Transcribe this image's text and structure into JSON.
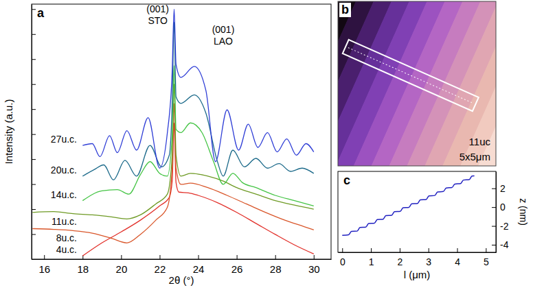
{
  "chart_data": [
    {
      "type": "line",
      "panel": "a",
      "x_label": "2θ (°)",
      "y_label": "Intensity (a.u.)",
      "xlim": [
        15.35,
        30.9
      ],
      "xticks": [
        16,
        18,
        20,
        22,
        24,
        26,
        28,
        30
      ],
      "ylim": [
        0,
        10.2
      ],
      "yticks": [
        0,
        1,
        2,
        3,
        4,
        5,
        6,
        7,
        8,
        9,
        10
      ],
      "tick_labels": "x",
      "annotations": [
        {
          "lines": [
            "(001)",
            "STO"
          ],
          "x": 21.9,
          "y": 9.87
        },
        {
          "lines": [
            "(001)",
            "LAO"
          ],
          "x": 25.3,
          "y": 9.06
        }
      ],
      "series": [
        {
          "name": "4u.c.",
          "color": "#e2302a",
          "x": [
            18.0,
            19.0,
            20.0,
            21.0,
            22.0,
            22.5,
            22.65,
            22.75,
            22.85,
            23.0,
            23.5,
            24.0,
            25.0,
            26.0,
            27.0,
            28.0,
            29.0,
            30.0
          ],
          "values": [
            0.13,
            0.65,
            1.09,
            1.56,
            2.13,
            2.47,
            3.12,
            5.45,
            3.06,
            2.68,
            2.65,
            2.55,
            2.26,
            1.87,
            1.43,
            0.99,
            0.57,
            0.21
          ]
        },
        {
          "name": "8u.c.",
          "color": "#d9562a",
          "x": [
            15.4,
            16.5,
            17.5,
            18.5,
            19.5,
            20.3,
            21.0,
            21.8,
            22.4,
            22.65,
            22.75,
            22.85,
            23.1,
            23.6,
            24.5,
            25.5,
            26.5,
            27.5,
            28.5,
            29.5,
            30.0
          ],
          "values": [
            1.22,
            1.19,
            1.14,
            1.04,
            0.83,
            0.65,
            0.99,
            1.56,
            2.08,
            3.64,
            6.23,
            3.64,
            2.99,
            3.04,
            2.86,
            2.55,
            2.21,
            1.87,
            1.56,
            1.3,
            1.17
          ]
        },
        {
          "name": "11u.c.",
          "color": "#6e9a24",
          "x": [
            15.4,
            16.5,
            17.5,
            18.5,
            19.5,
            20.3,
            21.0,
            21.8,
            22.4,
            22.65,
            22.75,
            22.85,
            23.1,
            23.6,
            24.5,
            25.3,
            26.0,
            27.0,
            28.0,
            29.0,
            30.0
          ],
          "values": [
            1.87,
            1.9,
            1.82,
            1.77,
            1.69,
            1.61,
            1.77,
            2.21,
            2.6,
            4.16,
            7.01,
            4.16,
            3.32,
            3.43,
            3.32,
            3.12,
            2.86,
            2.6,
            2.34,
            2.16,
            2.0
          ]
        },
        {
          "name": "14u.c.",
          "color": "#44c444",
          "x": [
            18.0,
            19.0,
            19.8,
            20.4,
            21.0,
            21.5,
            22.0,
            22.4,
            22.65,
            22.75,
            22.85,
            23.1,
            23.6,
            24.2,
            24.8,
            25.3,
            25.8,
            26.3,
            27.0,
            28.0,
            29.0,
            30.0
          ],
          "values": [
            2.34,
            2.73,
            2.78,
            2.6,
            3.38,
            3.9,
            3.43,
            3.32,
            4.94,
            7.74,
            5.19,
            5.06,
            5.45,
            5.06,
            3.9,
            2.99,
            3.43,
            3.06,
            2.86,
            2.55,
            2.34,
            2.13
          ]
        },
        {
          "name": "20u.c.",
          "color": "#1c6a8a",
          "x": [
            18.0,
            18.6,
            19.1,
            19.6,
            20.2,
            20.8,
            21.5,
            22.1,
            22.5,
            22.65,
            22.75,
            22.85,
            23.1,
            23.8,
            24.4,
            25.0,
            25.3,
            25.8,
            26.4,
            27.0,
            27.6,
            28.2,
            28.8,
            29.4,
            30.0
          ],
          "values": [
            3.32,
            3.58,
            3.77,
            3.17,
            3.95,
            3.32,
            4.55,
            3.69,
            4.16,
            6.23,
            9.48,
            6.49,
            6.23,
            6.57,
            5.84,
            3.9,
            3.32,
            4.36,
            3.69,
            4.03,
            3.64,
            3.82,
            3.51,
            3.64,
            3.43
          ]
        },
        {
          "name": "27u.c.",
          "color": "#2f3ed6",
          "x": [
            18.0,
            18.5,
            18.9,
            19.4,
            19.8,
            20.3,
            20.8,
            21.4,
            22.0,
            22.4,
            22.65,
            22.75,
            22.85,
            23.1,
            23.8,
            24.4,
            24.9,
            25.5,
            26.1,
            26.6,
            27.1,
            27.6,
            28.1,
            28.6,
            29.1,
            29.6,
            30.0
          ],
          "values": [
            4.55,
            4.62,
            4.1,
            4.94,
            4.26,
            5.14,
            4.36,
            5.66,
            3.64,
            5.06,
            7.53,
            10.0,
            7.79,
            7.27,
            7.71,
            6.75,
            3.9,
            5.97,
            4.36,
            5.4,
            4.47,
            5.06,
            4.29,
            4.81,
            4.16,
            4.62,
            4.29
          ]
        }
      ]
    },
    {
      "type": "image",
      "panel": "b",
      "colors": [
        "#120812",
        "#2e1240",
        "#4a1f6e",
        "#66309a",
        "#8040b4",
        "#9c52c0",
        "#b466c4",
        "#c67cbf",
        "#d492b8",
        "#e0a6b2",
        "#e9b8b0",
        "#f1cabf",
        "#f7dcd2"
      ],
      "annotations": [
        "11uc",
        "5x5μm"
      ]
    },
    {
      "type": "line",
      "panel": "c",
      "x_label": "l (μm)",
      "y2_label": "z (nm)",
      "xlim": [
        -0.15,
        5.35
      ],
      "xticks": [
        0,
        1,
        2,
        3,
        4,
        5
      ],
      "y2lim": [
        -4.8,
        3.8
      ],
      "y2ticks": [
        -4,
        -2,
        0,
        2
      ],
      "series": [
        {
          "color": "#2020c0",
          "axis": "y2",
          "x": [
            0.0,
            0.22,
            0.32,
            0.52,
            0.62,
            0.82,
            0.92,
            1.12,
            1.22,
            1.42,
            1.52,
            1.72,
            1.82,
            2.02,
            2.12,
            2.32,
            2.42,
            2.62,
            2.72,
            2.92,
            3.02,
            3.22,
            3.32,
            3.52,
            3.62,
            3.82,
            3.92,
            4.12,
            4.22,
            4.42,
            4.52,
            4.6
          ],
          "values": [
            -3.0,
            -2.95,
            -2.58,
            -2.55,
            -2.16,
            -2.12,
            -1.74,
            -1.7,
            -1.32,
            -1.28,
            -0.9,
            -0.86,
            -0.48,
            -0.44,
            -0.06,
            -0.02,
            0.36,
            0.4,
            0.78,
            0.82,
            1.2,
            1.24,
            1.62,
            1.66,
            2.04,
            2.08,
            2.46,
            2.5,
            2.88,
            2.92,
            3.3,
            3.32
          ]
        }
      ]
    }
  ]
}
